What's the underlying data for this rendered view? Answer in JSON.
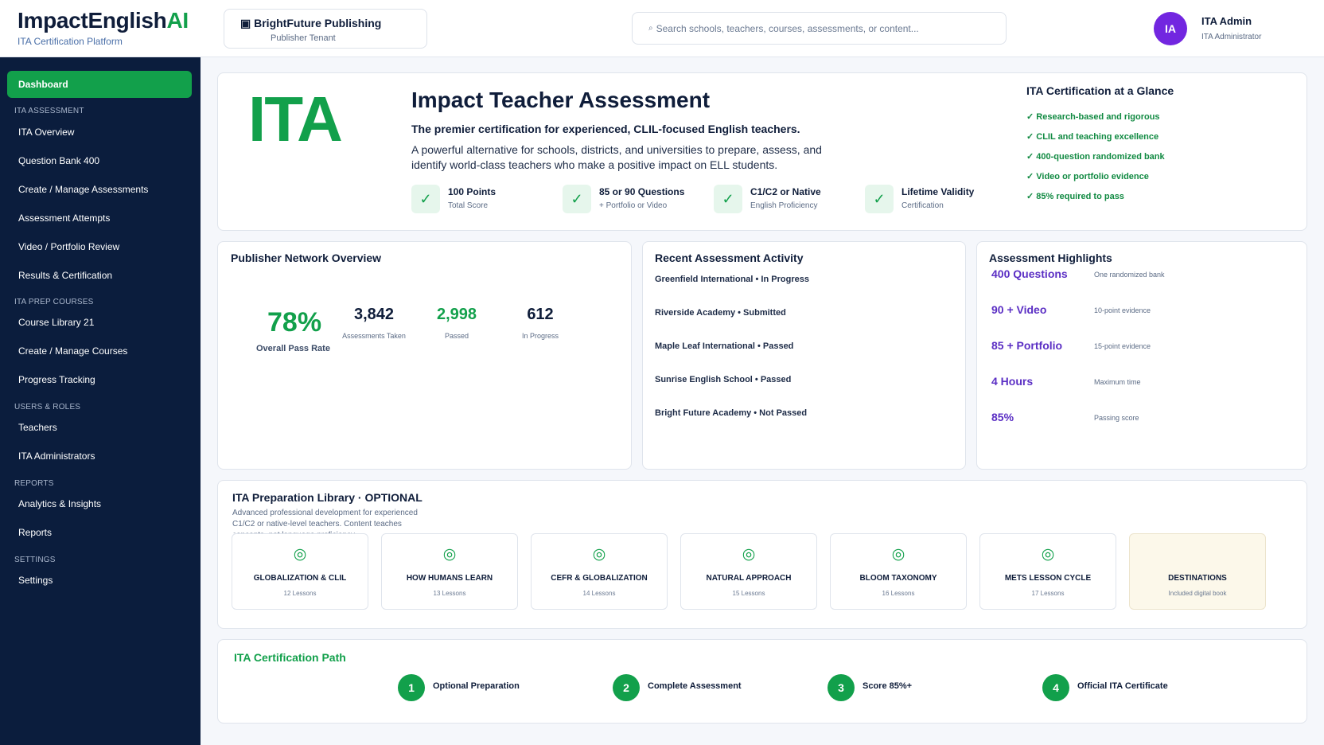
{
  "header": {
    "brand_main": "ImpactEnglish",
    "brand_ai": "AI",
    "brand_sub": "ITA Certification Platform",
    "tenant_name": "BrightFuture Publishing",
    "tenant_sub": "Publisher Tenant",
    "search_placeholder": "Search schools, teachers, courses, assessments, or content...",
    "avatar_initials": "IA",
    "user_name": "ITA Admin",
    "user_role": "ITA Administrator"
  },
  "sidebar": {
    "active": "Dashboard",
    "sections": [
      {
        "title": "ITA ASSESSMENT",
        "items": [
          "ITA Overview",
          "Question Bank 400",
          "Create / Manage Assessments",
          "Assessment Attempts",
          "Video / Portfolio Review",
          "Results & Certification"
        ]
      },
      {
        "title": "ITA PREP COURSES",
        "items": [
          "Course Library 21",
          "Create / Manage Courses",
          "Progress Tracking"
        ]
      },
      {
        "title": "USERS & ROLES",
        "items": [
          "Teachers",
          "ITA Administrators"
        ]
      },
      {
        "title": "REPORTS",
        "items": [
          "Analytics & Insights",
          "Reports"
        ]
      },
      {
        "title": "SETTINGS",
        "items": [
          "Settings"
        ]
      }
    ]
  },
  "hero": {
    "logo": "ITA",
    "title": "Impact Teacher Assessment",
    "tagline": "The premier certification for experienced, CLIL-focused English teachers.",
    "description": "A powerful alternative for schools, districts, and universities to prepare, assess, and identify world-class teachers who make a positive impact on ELL students.",
    "stats": [
      {
        "label": "100 Points",
        "sub": "Total Score"
      },
      {
        "label": "85 or 90 Questions",
        "sub": "+ Portfolio or Video"
      },
      {
        "label": "C1/C2 or Native",
        "sub": "English Proficiency"
      },
      {
        "label": "Lifetime Validity",
        "sub": "Certification"
      }
    ],
    "glance_title": "ITA Certification at a Glance",
    "glance_items": [
      "✓ Research-based and rigorous",
      "✓ CLIL and teaching excellence",
      "✓ 400-question randomized bank",
      "✓ Video or portfolio evidence",
      "✓ 85% required to pass"
    ]
  },
  "network": {
    "title": "Publisher Network Overview",
    "pass_rate": "78%",
    "pass_rate_label": "Overall Pass Rate",
    "metrics": [
      {
        "value": "3,842",
        "label": "Assessments Taken",
        "color": "#0f1d3a"
      },
      {
        "value": "2,998",
        "label": "Passed",
        "color": "#12a04b"
      },
      {
        "value": "612",
        "label": "In Progress",
        "color": "#0f1d3a"
      }
    ]
  },
  "activity": {
    "title": "Recent Assessment Activity",
    "items": [
      "Greenfield International • In Progress",
      "Riverside Academy • Submitted",
      "Maple Leaf International • Passed",
      "Sunrise English School • Passed",
      "Bright Future Academy • Not Passed"
    ]
  },
  "highlights": {
    "title": "Assessment Highlights",
    "items": [
      {
        "value": "400 Questions",
        "sub": "One randomized bank"
      },
      {
        "value": "90 + Video",
        "sub": "10-point evidence"
      },
      {
        "value": "85 + Portfolio",
        "sub": "15-point evidence"
      },
      {
        "value": "4 Hours",
        "sub": "Maximum time"
      },
      {
        "value": "85%",
        "sub": "Passing score"
      }
    ]
  },
  "library": {
    "title": "ITA Preparation Library · OPTIONAL",
    "description": "Advanced professional development for experienced C1/C2 or native-level teachers. Content teaches concepts, not language proficiency.",
    "cards": [
      {
        "title": "GLOBALIZATION & CLIL",
        "sub": "12 Lessons",
        "icon": "target-icon"
      },
      {
        "title": "HOW HUMANS LEARN",
        "sub": "13 Lessons",
        "icon": "target-icon"
      },
      {
        "title": "CEFR & GLOBALIZATION",
        "sub": "14 Lessons",
        "icon": "target-icon"
      },
      {
        "title": "NATURAL APPROACH",
        "sub": "15 Lessons",
        "icon": "target-icon"
      },
      {
        "title": "BLOOM TAXONOMY",
        "sub": "16 Lessons",
        "icon": "target-icon"
      },
      {
        "title": "METS LESSON CYCLE",
        "sub": "17 Lessons",
        "icon": "target-icon"
      },
      {
        "title": "DESTINATIONS",
        "sub": "Included digital book",
        "icon": ""
      }
    ]
  },
  "path": {
    "title": "ITA Certification Path",
    "steps": [
      {
        "num": "1",
        "label": "Optional Preparation"
      },
      {
        "num": "2",
        "label": "Complete Assessment"
      },
      {
        "num": "3",
        "label": "Score 85%+"
      },
      {
        "num": "4",
        "label": "Official ITA Certificate"
      }
    ]
  },
  "colors": {
    "accent_green": "#12a04b",
    "sidebar_bg": "#0b1d3d",
    "highlight_purple": "#5b2fc4",
    "avatar": "#7226e0"
  }
}
